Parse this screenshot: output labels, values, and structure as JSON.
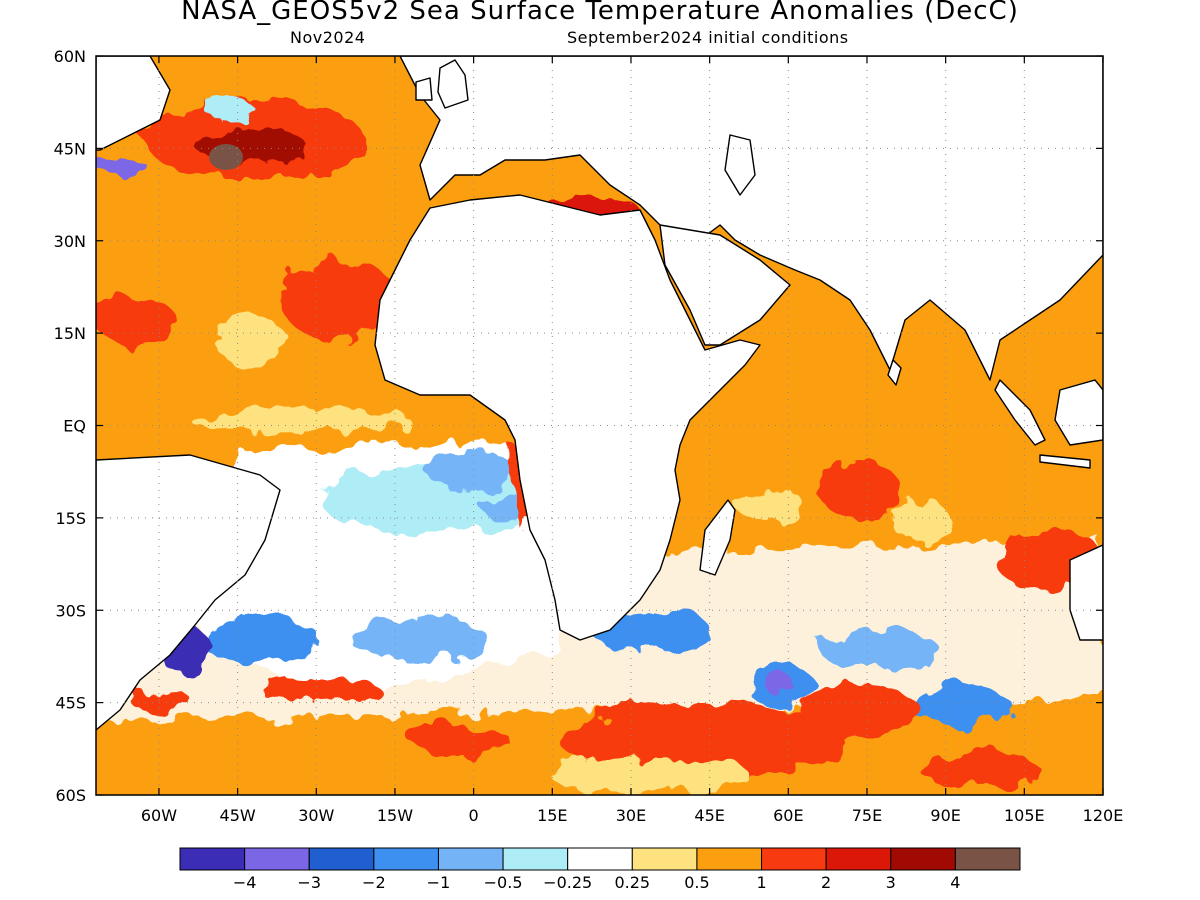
{
  "title": "NASA_GEOS5v2 Sea Surface Temperature Anomalies (DecC)",
  "subtitle_left": "Nov2024",
  "subtitle_right": "September2024 initial conditions",
  "map": {
    "lon_range": [
      -72,
      120
    ],
    "lat_range": [
      -60,
      60
    ],
    "lat_ticks": [
      {
        "value": 60,
        "label": "60N"
      },
      {
        "value": 45,
        "label": "45N"
      },
      {
        "value": 30,
        "label": "30N"
      },
      {
        "value": 15,
        "label": "15N"
      },
      {
        "value": 0,
        "label": "EQ"
      },
      {
        "value": -15,
        "label": "15S"
      },
      {
        "value": -30,
        "label": "30S"
      },
      {
        "value": -45,
        "label": "45S"
      },
      {
        "value": -60,
        "label": "60S"
      }
    ],
    "lon_ticks": [
      {
        "value": -60,
        "label": "60W"
      },
      {
        "value": -45,
        "label": "45W"
      },
      {
        "value": -30,
        "label": "30W"
      },
      {
        "value": -15,
        "label": "15W"
      },
      {
        "value": 0,
        "label": "0"
      },
      {
        "value": 15,
        "label": "15E"
      },
      {
        "value": 30,
        "label": "30E"
      },
      {
        "value": 45,
        "label": "45E"
      },
      {
        "value": 60,
        "label": "60E"
      },
      {
        "value": 75,
        "label": "75E"
      },
      {
        "value": 90,
        "label": "90E"
      },
      {
        "value": 105,
        "label": "105E"
      },
      {
        "value": 120,
        "label": "120E"
      }
    ],
    "grid": true
  },
  "colorbar": {
    "colors": [
      "#3b2db5",
      "#7b67e6",
      "#1f5fcf",
      "#3d8ff0",
      "#74b4f6",
      "#aeecf6",
      "#ffffff",
      "#fde27f",
      "#fb9f10",
      "#f73a10",
      "#db1708",
      "#a10a02",
      "#7a5347"
    ],
    "labels": [
      "−4",
      "−3",
      "−2",
      "−1",
      "−0.5",
      "−0.25",
      "0.25",
      "0.5",
      "1",
      "2",
      "3",
      "4"
    ]
  }
}
